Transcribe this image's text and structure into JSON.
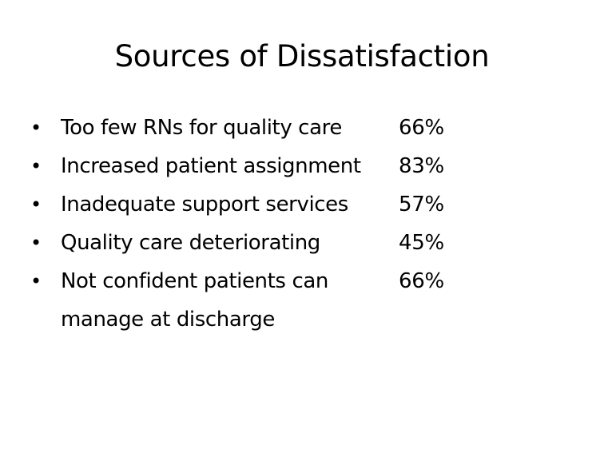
{
  "slide": {
    "title": "Sources of Dissatisfaction",
    "bullet_symbol": "•",
    "items": [
      {
        "text": "Too few RNs for quality care",
        "value": "66%"
      },
      {
        "text": "Increased patient assignment",
        "value": "83%"
      },
      {
        "text": "Inadequate support services",
        "value": "57%"
      },
      {
        "text": "Quality care deteriorating",
        "value": "45%"
      },
      {
        "text": "Not confident patients can manage at discharge",
        "value": "66%"
      }
    ]
  }
}
